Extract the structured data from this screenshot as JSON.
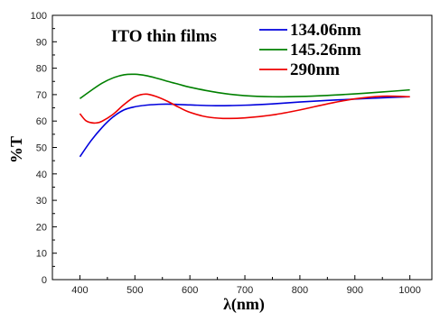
{
  "chart_data": {
    "type": "line",
    "title": "",
    "annotation": "ITO thin films",
    "xlabel": "λ(nm)",
    "ylabel": "%T",
    "xlim": [
      350,
      1040
    ],
    "ylim": [
      0,
      100
    ],
    "xticks": [
      400,
      500,
      600,
      700,
      800,
      900,
      1000
    ],
    "yticks": [
      0,
      10,
      20,
      30,
      40,
      50,
      60,
      70,
      80,
      90,
      100
    ],
    "grid": false,
    "legend_position": "top-right",
    "series": [
      {
        "name": "134.06nm",
        "color": "#0000dd",
        "x": [
          400,
          420,
          440,
          460,
          480,
          500,
          520,
          540,
          560,
          600,
          650,
          700,
          750,
          800,
          850,
          900,
          950,
          1000
        ],
        "y": [
          46.5,
          52.5,
          57.5,
          61.5,
          64.2,
          65.4,
          66.0,
          66.3,
          66.4,
          66.1,
          65.8,
          66.0,
          66.5,
          67.2,
          67.8,
          68.3,
          68.8,
          69.2
        ]
      },
      {
        "name": "145.26nm",
        "color": "#008000",
        "x": [
          400,
          420,
          440,
          460,
          480,
          500,
          520,
          540,
          560,
          580,
          600,
          650,
          700,
          750,
          800,
          850,
          900,
          950,
          1000
        ],
        "y": [
          68.5,
          71.5,
          74.3,
          76.3,
          77.5,
          77.7,
          77.2,
          76.2,
          75.0,
          73.9,
          72.8,
          70.8,
          69.6,
          69.2,
          69.3,
          69.7,
          70.3,
          71.0,
          71.8
        ]
      },
      {
        "name": "290nm",
        "color": "#ee0000",
        "x": [
          400,
          410,
          420,
          430,
          440,
          460,
          480,
          500,
          520,
          540,
          560,
          580,
          600,
          630,
          660,
          700,
          750,
          800,
          850,
          900,
          950,
          1000
        ],
        "y": [
          62.8,
          60.3,
          59.4,
          59.3,
          59.9,
          62.5,
          66.2,
          69.2,
          70.2,
          69.2,
          67.4,
          65.2,
          63.3,
          61.6,
          61.0,
          61.2,
          62.3,
          64.2,
          66.5,
          68.4,
          69.4,
          69.2
        ]
      }
    ]
  }
}
